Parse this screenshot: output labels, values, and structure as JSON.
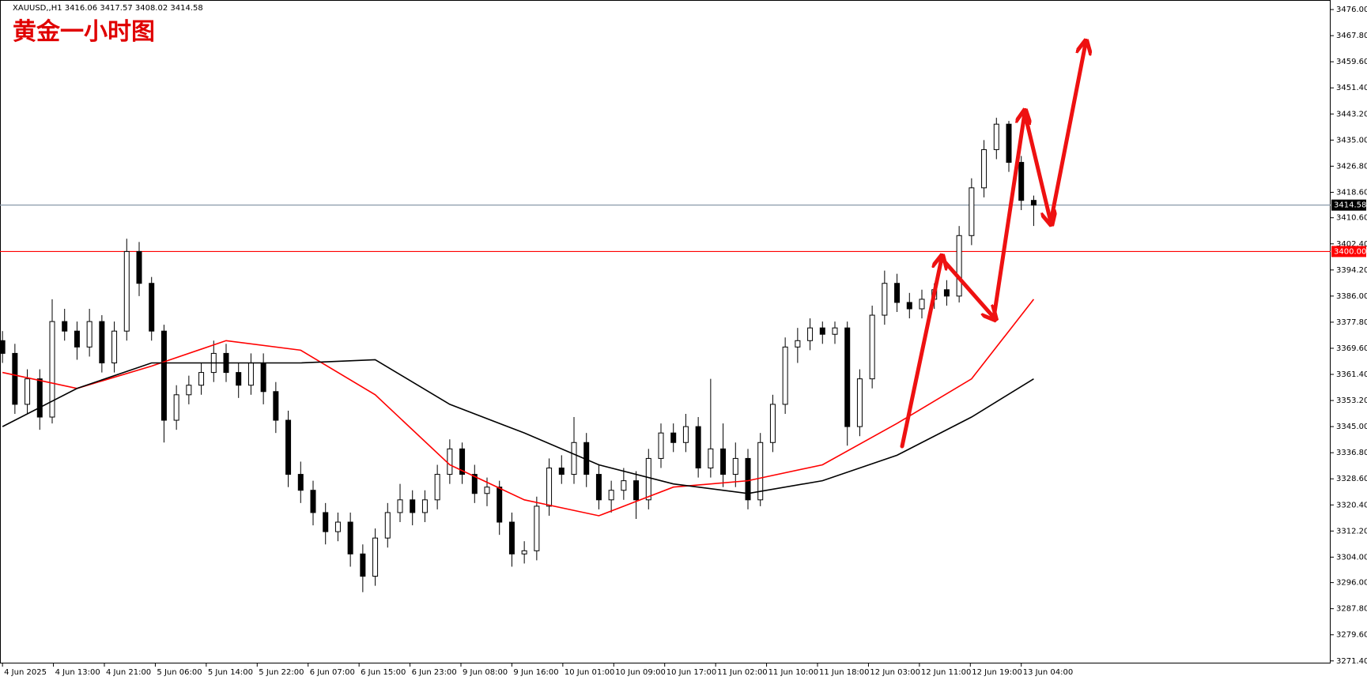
{
  "chart_data": {
    "type": "candlestick",
    "title": "黄金一小时图",
    "symbol_info": "XAUUSD,,H1  3416.06 3417.57 3408.02 3414.58",
    "ylim": [
      3270.6,
      3479.0
    ],
    "xlim": [
      -0.2,
      106.9
    ],
    "yticks": [
      {
        "value": 3476,
        "label": "3476.00"
      },
      {
        "value": 3467.8,
        "label": "3467.80"
      },
      {
        "value": 3459.6,
        "label": "3459.60"
      },
      {
        "value": 3451.4,
        "label": "3451.40"
      },
      {
        "value": 3443.2,
        "label": "3443.20"
      },
      {
        "value": 3435,
        "label": "3435.00"
      },
      {
        "value": 3426.8,
        "label": "3426.80"
      },
      {
        "value": 3418.6,
        "label": "3418.60"
      },
      {
        "value": 3410.6,
        "label": "3410.60"
      },
      {
        "value": 3402.4,
        "label": "3402.40"
      },
      {
        "value": 3394.2,
        "label": "3394.20"
      },
      {
        "value": 3386,
        "label": "3386.00"
      },
      {
        "value": 3377.8,
        "label": "3377.80"
      },
      {
        "value": 3369.6,
        "label": "3369.60"
      },
      {
        "value": 3361.4,
        "label": "3361.40"
      },
      {
        "value": 3353.2,
        "label": "3353.20"
      },
      {
        "value": 3345,
        "label": "3345.00"
      },
      {
        "value": 3336.8,
        "label": "3336.80"
      },
      {
        "value": 3328.6,
        "label": "3328.60"
      },
      {
        "value": 3320.4,
        "label": "3320.40"
      },
      {
        "value": 3312.2,
        "label": "3312.20"
      },
      {
        "value": 3304,
        "label": "3304.00"
      },
      {
        "value": 3296,
        "label": "3296.00"
      },
      {
        "value": 3287.8,
        "label": "3287.80"
      },
      {
        "value": 3279.6,
        "label": "3279.60"
      },
      {
        "value": 3271.4,
        "label": "3271.40"
      }
    ],
    "xticks": [
      {
        "value": 0,
        "label": "4 Jun 2025"
      },
      {
        "value": 4.1,
        "label": "4 Jun 13:00"
      },
      {
        "value": 8.2,
        "label": "4 Jun 21:00"
      },
      {
        "value": 12.3,
        "label": "5 Jun 06:00"
      },
      {
        "value": 16.4,
        "label": "5 Jun 14:00"
      },
      {
        "value": 20.5,
        "label": "5 Jun 22:00"
      },
      {
        "value": 24.6,
        "label": "6 Jun 07:00"
      },
      {
        "value": 28.7,
        "label": "6 Jun 15:00"
      },
      {
        "value": 32.8,
        "label": "6 Jun 23:00"
      },
      {
        "value": 36.9,
        "label": "9 Jun 08:00"
      },
      {
        "value": 41,
        "label": "9 Jun 16:00"
      },
      {
        "value": 45.1,
        "label": "10 Jun 01:00"
      },
      {
        "value": 49.2,
        "label": "10 Jun 09:00"
      },
      {
        "value": 53.3,
        "label": "10 Jun 17:00"
      },
      {
        "value": 57.4,
        "label": "11 Jun 02:00"
      },
      {
        "value": 61.5,
        "label": "11 Jun 10:00"
      },
      {
        "value": 65.6,
        "label": "11 Jun 18:00"
      },
      {
        "value": 69.7,
        "label": "12 Jun 03:00"
      },
      {
        "value": 73.8,
        "label": "12 Jun 11:00"
      },
      {
        "value": 77.9,
        "label": "12 Jun 19:00"
      },
      {
        "value": 82,
        "label": "13 Jun 04:00"
      }
    ],
    "open": [
      3372,
      3368,
      3352,
      3360,
      3348,
      3378,
      3375,
      3370,
      3378,
      3365,
      3375,
      3400,
      3390,
      3375,
      3347,
      3355,
      3358,
      3362,
      3368,
      3362,
      3358,
      3365,
      3356,
      3347,
      3330,
      3325,
      3318,
      3312,
      3315,
      3305,
      3298,
      3310,
      3318,
      3322,
      3318,
      3322,
      3330,
      3338,
      3330,
      3324,
      3326,
      3315,
      3305,
      3306,
      3320,
      3332,
      3330,
      3340,
      3330,
      3322,
      3325,
      3328,
      3322,
      3335,
      3343,
      3340,
      3345,
      3332,
      3338,
      3330,
      3335,
      3322,
      3340,
      3352,
      3370,
      3372,
      3376,
      3374,
      3376,
      3345,
      3360,
      3380,
      3390,
      3384,
      3382,
      3385,
      3388,
      3386,
      3405,
      3420,
      3432,
      3440,
      3428,
      3416.06
    ],
    "high": [
      3375,
      3371,
      3363,
      3363,
      3385,
      3382,
      3378,
      3382,
      3380,
      3378,
      3404,
      3403,
      3392,
      3377,
      3358,
      3361,
      3365,
      3372,
      3371,
      3365,
      3368,
      3368,
      3359,
      3350,
      3334,
      3328,
      3321,
      3318,
      3318,
      3308,
      3313,
      3321,
      3327,
      3325,
      3325,
      3333,
      3341,
      3340,
      3333,
      3329,
      3328,
      3318,
      3309,
      3323,
      3335,
      3336,
      3348,
      3343,
      3333,
      3328,
      3332,
      3331,
      3338,
      3346,
      3346,
      3349,
      3348,
      3360,
      3346,
      3340,
      3338,
      3343,
      3355,
      3373,
      3376,
      3379,
      3378,
      3378,
      3378,
      3363,
      3383,
      3394,
      3393,
      3387,
      3388,
      3390,
      3391,
      3408,
      3423,
      3435,
      3442,
      3441,
      3430,
      3417.57
    ],
    "low": [
      3365,
      3349,
      3349,
      3344,
      3346,
      3372,
      3366,
      3367,
      3362,
      3362,
      3372,
      3386,
      3372,
      3340,
      3344,
      3352,
      3355,
      3359,
      3359,
      3354,
      3355,
      3352,
      3343,
      3326,
      3321,
      3314,
      3308,
      3309,
      3301,
      3293,
      3295,
      3307,
      3315,
      3314,
      3315,
      3319,
      3327,
      3327,
      3321,
      3320,
      3311,
      3301,
      3302,
      3303,
      3317,
      3327,
      3327,
      3326,
      3319,
      3318,
      3322,
      3316,
      3319,
      3332,
      3337,
      3337,
      3329,
      3329,
      3326,
      3326,
      3319,
      3320,
      3337,
      3349,
      3365,
      3369,
      3371,
      3371,
      3339,
      3342,
      3357,
      3377,
      3381,
      3379,
      3379,
      3382,
      3383,
      3384,
      3402,
      3417,
      3429,
      3425,
      3413,
      3408.02
    ],
    "close": [
      3368,
      3352,
      3360,
      3348,
      3378,
      3375,
      3370,
      3378,
      3365,
      3375,
      3400,
      3390,
      3375,
      3347,
      3355,
      3358,
      3362,
      3368,
      3362,
      3358,
      3365,
      3356,
      3347,
      3330,
      3325,
      3318,
      3312,
      3315,
      3305,
      3298,
      3310,
      3318,
      3322,
      3318,
      3322,
      3330,
      3338,
      3330,
      3324,
      3326,
      3315,
      3305,
      3306,
      3320,
      3332,
      3330,
      3340,
      3330,
      3322,
      3325,
      3328,
      3322,
      3335,
      3343,
      3340,
      3345,
      3332,
      3338,
      3330,
      3335,
      3322,
      3340,
      3352,
      3370,
      3372,
      3376,
      3374,
      3376,
      3345,
      3360,
      3380,
      3390,
      3384,
      3382,
      3385,
      3388,
      3386,
      3405,
      3420,
      3432,
      3440,
      3428,
      3416.06,
      3414.58
    ],
    "series": [
      {
        "color": "#ff0000",
        "x": [
          0,
          6,
          12,
          18,
          24,
          30,
          36,
          42,
          48,
          54,
          60,
          66,
          72,
          78,
          83
        ],
        "values": [
          3362,
          3357,
          3364,
          3372,
          3369,
          3355,
          3333,
          3322,
          3317,
          3326,
          3328,
          3333,
          3346,
          3360,
          3385
        ]
      },
      {
        "color": "#000000",
        "x": [
          0,
          6,
          12,
          18,
          24,
          30,
          36,
          42,
          48,
          54,
          60,
          66,
          72,
          78,
          83
        ],
        "values": [
          3345,
          3357,
          3365,
          3365,
          3365,
          3366,
          3352,
          3343,
          3333,
          3327,
          3324,
          3328,
          3336,
          3348,
          3360
        ]
      }
    ],
    "hlines": [
      {
        "value": 3414.58,
        "label": "3414.58",
        "color": "#8899aa",
        "label_bg": "#000000"
      },
      {
        "value": 3400,
        "label": "3400.00",
        "color": "#ff0000",
        "label_bg": "#ff0000"
      }
    ]
  }
}
